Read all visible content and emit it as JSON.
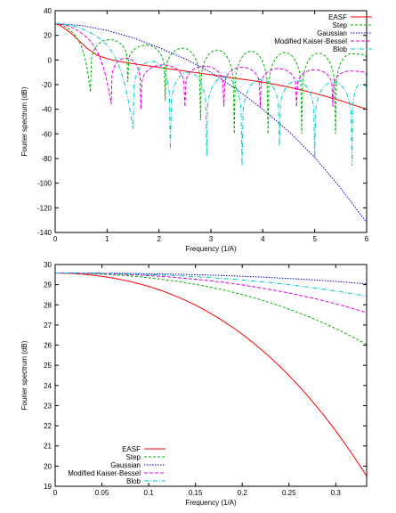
{
  "chart_data": [
    {
      "type": "line",
      "xlabel": "Frequency (1/A)",
      "ylabel": "Fourier spectrum (dB)",
      "xlim": [
        0,
        6
      ],
      "ylim": [
        -140,
        40
      ],
      "xticks": [
        0,
        1,
        2,
        3,
        4,
        5,
        6
      ],
      "yticks": [
        -140,
        -120,
        -100,
        -80,
        -60,
        -40,
        -20,
        0,
        20,
        40
      ],
      "grid": false,
      "legend_position": "top-right",
      "series": [
        {
          "name": "EASF",
          "color": "#ff0000",
          "dash": "solid",
          "x": [
            0,
            0.1,
            0.2,
            0.3,
            0.4,
            0.5,
            0.6,
            0.7,
            0.8,
            1.0,
            1.2,
            1.5,
            2.0,
            2.5,
            3.0,
            3.5,
            4.0,
            4.5,
            5.0,
            5.5,
            6.0
          ],
          "y": [
            29.5,
            28,
            25,
            22,
            18,
            14,
            10,
            7,
            4,
            1,
            -1,
            -3,
            -6,
            -9,
            -12,
            -15,
            -18,
            -22,
            -27,
            -33,
            -40
          ]
        },
        {
          "name": "Step",
          "color": "#00b000",
          "dash": "3,2",
          "peaks_x": [
            0,
            1.0,
            1.75,
            2.42,
            3.1,
            3.76,
            4.4,
            5.04,
            5.68
          ],
          "peaks_y": [
            29.5,
            16.5,
            12,
            9.5,
            8,
            7,
            6,
            5.5,
            5
          ],
          "nulls_x": [
            0.68,
            1.4,
            2.12,
            2.8,
            3.45,
            4.1,
            4.75,
            5.4
          ],
          "nulls_y": [
            -26,
            -18,
            -33,
            -49,
            -60,
            -60,
            -60,
            -60
          ]
        },
        {
          "name": "Gaussian",
          "color": "#0000c8",
          "dash": "1.5,1.5",
          "x": [
            0,
            0.5,
            1.0,
            1.5,
            2.0,
            2.5,
            3.0,
            3.5,
            4.0,
            4.5,
            5.0,
            5.5,
            6.0
          ],
          "y": [
            29.5,
            28,
            24,
            18,
            10,
            1,
            -10,
            -24,
            -40,
            -58,
            -79,
            -104,
            -132
          ]
        },
        {
          "name": "Modified Kaiser-Bessel",
          "color": "#e000e0",
          "dash": "4,2",
          "peaks_x": [
            0,
            1.38,
            2.15,
            2.92,
            3.64,
            4.34,
            5.05,
            5.76
          ],
          "peaks_y": [
            29.5,
            1.5,
            -4,
            -5,
            -6,
            -7,
            -8,
            -9
          ],
          "nulls_x": [
            1.08,
            1.65,
            2.5,
            3.25,
            3.95,
            4.65,
            5.35
          ],
          "nulls_y": [
            -36,
            -40,
            -38,
            -38,
            -38,
            -38,
            -38
          ]
        },
        {
          "name": "Blob",
          "color": "#00c8c8",
          "dash": "5,2,1,2",
          "peaks_x": [
            0,
            1.26,
            1.9,
            2.55,
            3.28,
            4.0,
            4.72,
            5.43
          ],
          "peaks_y": [
            29.5,
            -1,
            -10,
            -14,
            -16,
            -17,
            -18,
            -20
          ],
          "nulls_x": [
            1.5,
            2.22,
            2.92,
            3.6,
            4.32,
            5.0,
            5.72
          ],
          "nulls_y": [
            -56,
            -73,
            -78,
            -86,
            -70,
            -80,
            -86
          ]
        }
      ]
    },
    {
      "type": "line",
      "xlabel": "Frequency (1/A)",
      "ylabel": "Fourier spectrum (dB)",
      "xlim": [
        0,
        0.333
      ],
      "ylim": [
        19,
        30
      ],
      "xticks": [
        0,
        0.05,
        0.1,
        0.15,
        0.2,
        0.25,
        0.3
      ],
      "yticks": [
        19,
        20,
        21,
        22,
        23,
        24,
        25,
        26,
        27,
        28,
        29,
        30
      ],
      "grid": false,
      "legend_position": "bottom-left",
      "series": [
        {
          "name": "EASF",
          "color": "#ff0000",
          "dash": "solid",
          "y0": 29.58,
          "y_end": 19.7
        },
        {
          "name": "Step",
          "color": "#00b000",
          "dash": "3,2",
          "y0": 29.58,
          "y_end": 26.1
        },
        {
          "name": "Gaussian",
          "color": "#0000c8",
          "dash": "1.5,1.5",
          "y0": 29.58,
          "y_end": 29.05
        },
        {
          "name": "Modified Kaiser-Bessel",
          "color": "#e000e0",
          "dash": "4,2",
          "y0": 29.58,
          "y_end": 27.65
        },
        {
          "name": "Blob",
          "color": "#00c8c8",
          "dash": "5,2,1,2",
          "y0": 29.58,
          "y_end": 28.45
        }
      ]
    }
  ]
}
